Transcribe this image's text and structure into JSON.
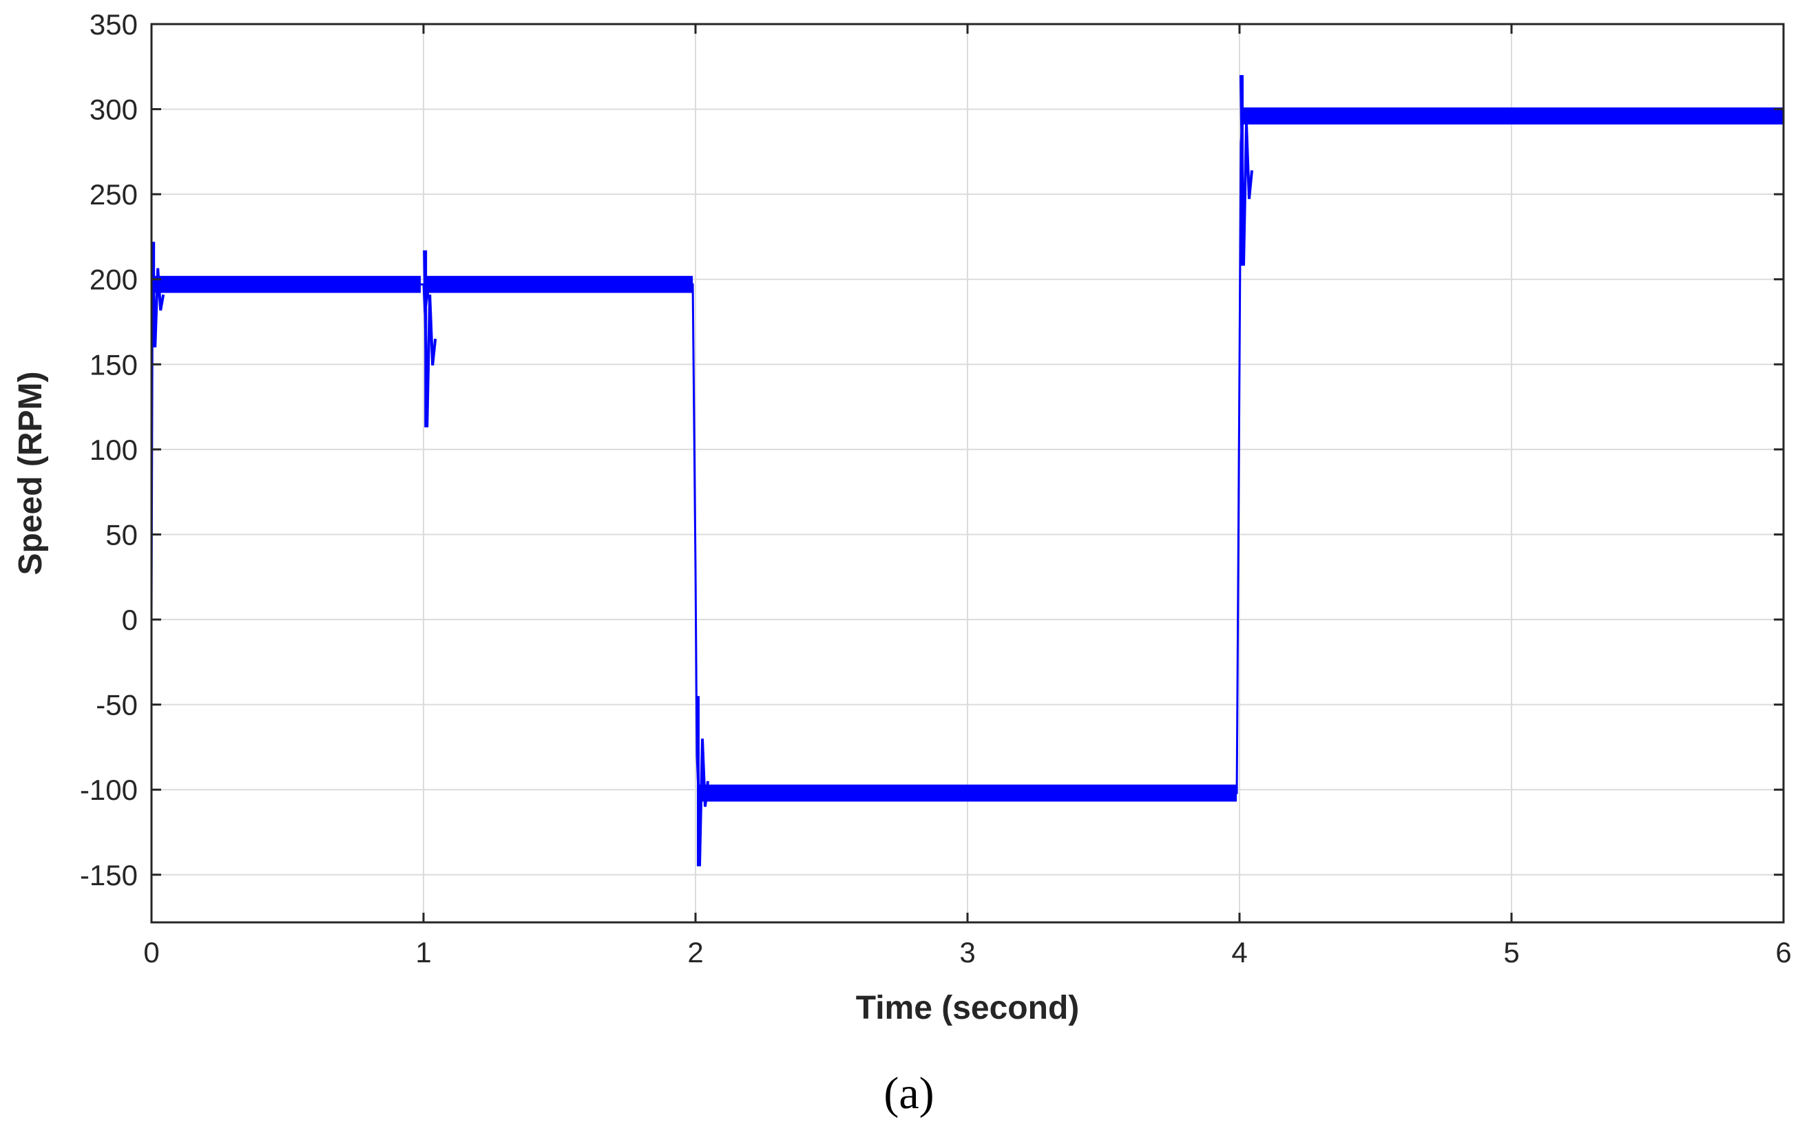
{
  "chart_data": {
    "type": "line",
    "title": "",
    "xlabel": "Time (second)",
    "ylabel": "Speed (RPM)",
    "caption": "(a)",
    "xlim": [
      0,
      6
    ],
    "ylim": [
      -178,
      350
    ],
    "xticks": [
      0,
      1,
      2,
      3,
      4,
      5,
      6
    ],
    "yticks": [
      -150,
      -100,
      -50,
      0,
      50,
      100,
      150,
      200,
      250,
      300,
      350
    ],
    "grid": true,
    "legend": "none",
    "series": [
      {
        "color": "#0000ff",
        "x": [
          0,
          0.004,
          0.01,
          0.02,
          0.04,
          0.06,
          0.1,
          0.2,
          0.5,
          0.99,
          1.0,
          1.005,
          1.02,
          1.05,
          1.1,
          1.2,
          1.5,
          1.99,
          2.0,
          2.005,
          2.01,
          2.02,
          2.05,
          2.1,
          2.2,
          2.5,
          3.0,
          3.5,
          3.99,
          4.0,
          4.005,
          4.01,
          4.02,
          4.05,
          4.1,
          4.2,
          4.5,
          5.0,
          5.5,
          6.0
        ],
        "y": [
          0,
          200,
          198,
          197,
          197,
          197,
          197,
          197,
          197,
          197,
          197,
          180,
          195,
          197,
          197,
          197,
          197,
          197,
          30,
          -80,
          -100,
          -103,
          -102,
          -102,
          -102,
          -102,
          -102,
          -102,
          -102,
          150,
          280,
          294,
          296,
          296,
          296,
          296,
          296,
          296,
          296,
          296
        ]
      }
    ],
    "oscillation_band": [
      {
        "x_start": 0.0,
        "x_end": 0.99,
        "y_low": 192,
        "y_high": 202
      },
      {
        "x_start": 1.0,
        "x_end": 1.99,
        "y_low": 192,
        "y_high": 202
      },
      {
        "x_start": 2.01,
        "x_end": 3.99,
        "y_low": -107,
        "y_high": -97
      },
      {
        "x_start": 4.01,
        "x_end": 6.0,
        "y_low": 291,
        "y_high": 301
      }
    ],
    "transient_spikes": [
      {
        "x": 0.003,
        "y_max": 222,
        "y_min": 160
      },
      {
        "x": 1.003,
        "y_max": 217,
        "y_min": 113
      },
      {
        "x": 2.005,
        "y_max": -45,
        "y_min": -145
      },
      {
        "x": 4.005,
        "y_max": 320,
        "y_min": 208
      }
    ]
  }
}
